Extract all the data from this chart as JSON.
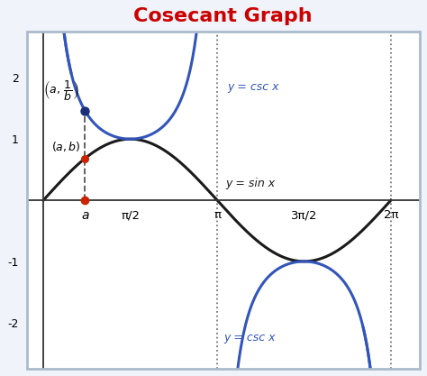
{
  "title": "Cosecant Graph",
  "title_color": "#cc0000",
  "title_fontsize": 16,
  "xlim": [
    -0.3,
    6.8
  ],
  "ylim": [
    -2.75,
    2.75
  ],
  "yticks": [
    -2,
    -1,
    1,
    2
  ],
  "background_color": "#f0f4fa",
  "plot_bg": "#ffffff",
  "sin_color": "#1a1a1a",
  "csc_color": "#3355bb",
  "point_sin_color": "#cc2200",
  "point_csc_color": "#1a2e7a",
  "dashed_color": "#555555",
  "dotted_vline_color": "#777777",
  "label_csc_top": "y = csc x",
  "label_csc_bottom": "y = csc x",
  "label_sin": "y = sin x",
  "label_3pi2": "3π/2",
  "label_pi2": "π/2",
  "label_pi": "π",
  "label_2pi": "2π",
  "label_a": "a",
  "a_val": 0.75,
  "figsize": [
    4.74,
    4.17
  ],
  "dpi": 100,
  "border_color": "#aabbcc",
  "axis_color": "#333333"
}
